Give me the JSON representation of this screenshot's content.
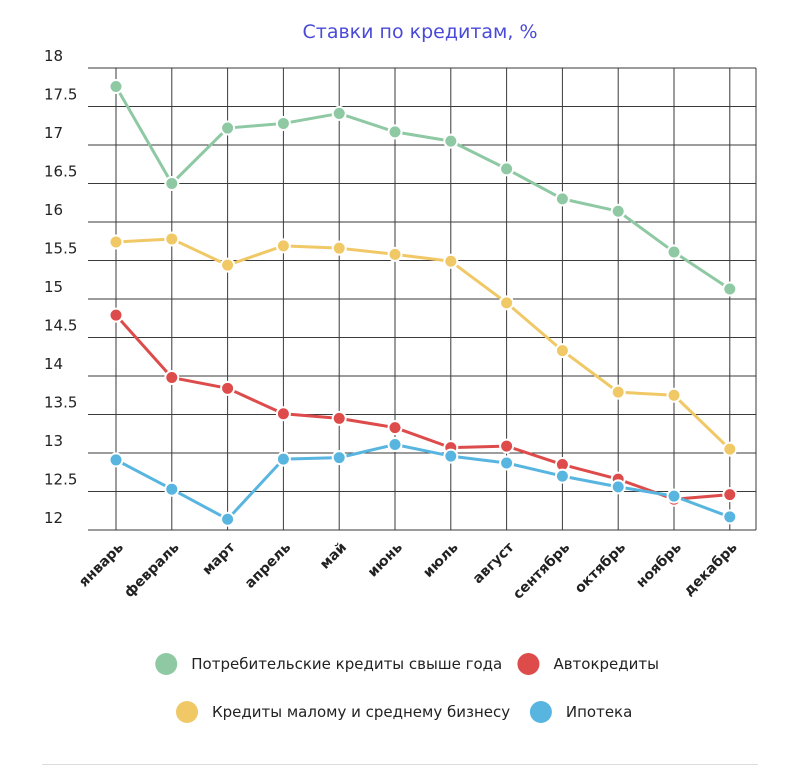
{
  "chart_data": {
    "type": "line",
    "title": "Ставки по кредитам, %",
    "xlabel": "",
    "ylabel": "",
    "ylim": [
      12,
      18
    ],
    "yticks": [
      "12",
      "12.5",
      "13",
      "13.5",
      "14",
      "14.5",
      "15",
      "15.5",
      "16",
      "16.5",
      "17",
      "17.5",
      "18"
    ],
    "categories": [
      "январь",
      "февраль",
      "март",
      "апрель",
      "май",
      "июнь",
      "июль",
      "август",
      "сентябрь",
      "октябрь",
      "ноябрь",
      "декабрь"
    ],
    "grid": true,
    "legend_position": "bottom",
    "series": [
      {
        "name": "Потребительские кредиты свыше года",
        "color": "#8ec9a4",
        "values": [
          17.76,
          16.5,
          17.22,
          17.28,
          17.41,
          17.17,
          17.05,
          16.69,
          16.3,
          16.14,
          15.61,
          15.13
        ]
      },
      {
        "name": "Кредиты малому и среднему бизнесу",
        "color": "#f0c866",
        "values": [
          15.74,
          15.78,
          15.44,
          15.69,
          15.66,
          15.58,
          15.49,
          14.95,
          14.33,
          13.79,
          13.75,
          13.05
        ]
      },
      {
        "name": "Автокредиты",
        "color": "#dd4b4b",
        "values": [
          14.79,
          13.98,
          13.84,
          13.51,
          13.45,
          13.33,
          13.07,
          13.09,
          12.85,
          12.66,
          12.4,
          12.46
        ]
      },
      {
        "name": "Ипотека",
        "color": "#58b5e0",
        "values": [
          12.91,
          12.53,
          12.14,
          12.92,
          12.94,
          13.11,
          12.96,
          12.87,
          12.7,
          12.56,
          12.44,
          12.17
        ]
      }
    ],
    "legend_order": [
      0,
      2,
      1,
      3
    ]
  }
}
